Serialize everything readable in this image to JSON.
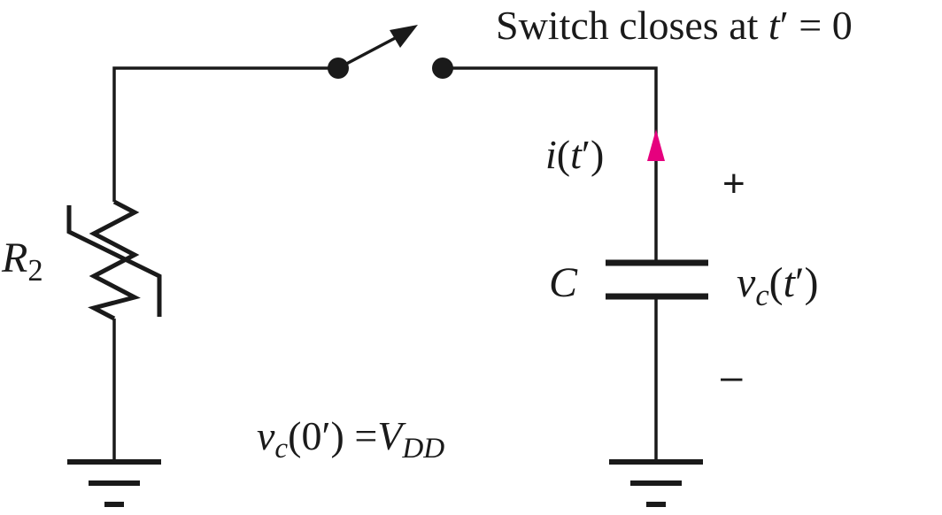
{
  "switch_caption": {
    "text": "Switch closes at ",
    "var": "t",
    "rest": "′ = 0"
  },
  "resistor": {
    "symbol": "R",
    "subscript": "2"
  },
  "current": {
    "text_fn": "i",
    "text_open": "(",
    "text_var": "t",
    "text_close": "′)",
    "arrow_color": "#e6007e"
  },
  "capacitor": {
    "symbol": "C"
  },
  "voltage": {
    "symbol": "v",
    "subscript": "c",
    "arg_open": "(",
    "arg_var": "t",
    "arg_close": "′)",
    "plus": "+",
    "minus": "–"
  },
  "initial_condition": {
    "symbol": "v",
    "subscript": "c",
    "arg": "(0′) =",
    "rhs": "V",
    "rhs_subscript": "DD"
  },
  "colors": {
    "wire": "#1a1a1a",
    "current_arrow": "#e6007e"
  }
}
